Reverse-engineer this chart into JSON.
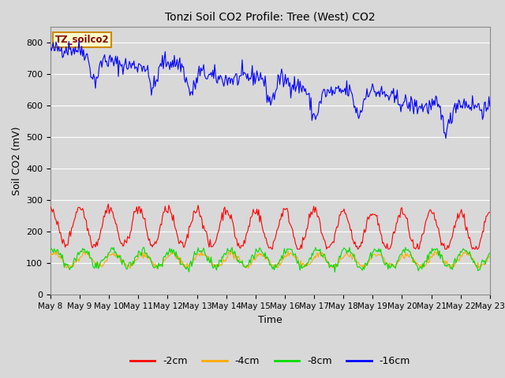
{
  "title": "Tonzi Soil CO2 Profile: Tree (West) CO2",
  "xlabel": "Time",
  "ylabel": "Soil CO2 (mV)",
  "ylim": [
    0,
    850
  ],
  "yticks": [
    0,
    100,
    200,
    300,
    400,
    500,
    600,
    700,
    800
  ],
  "legend_label": "TZ_soilco2",
  "legend_bg": "#ffffcc",
  "legend_border": "#cc8800",
  "bg_color": "#d8d8d8",
  "series_colors": {
    "-2cm": "#ff0000",
    "-4cm": "#ffaa00",
    "-8cm": "#00dd00",
    "-16cm": "#0000ff"
  },
  "n_points": 480,
  "line_width": 0.8,
  "x_tick_labels": [
    "May 8",
    "May 9",
    "May 10",
    "May 11",
    "May 12",
    "May 13",
    "May 14",
    "May 15",
    "May 16",
    "May 17",
    "May 18",
    "May 19",
    "May 20",
    "May 21",
    "May 22",
    "May 23"
  ]
}
